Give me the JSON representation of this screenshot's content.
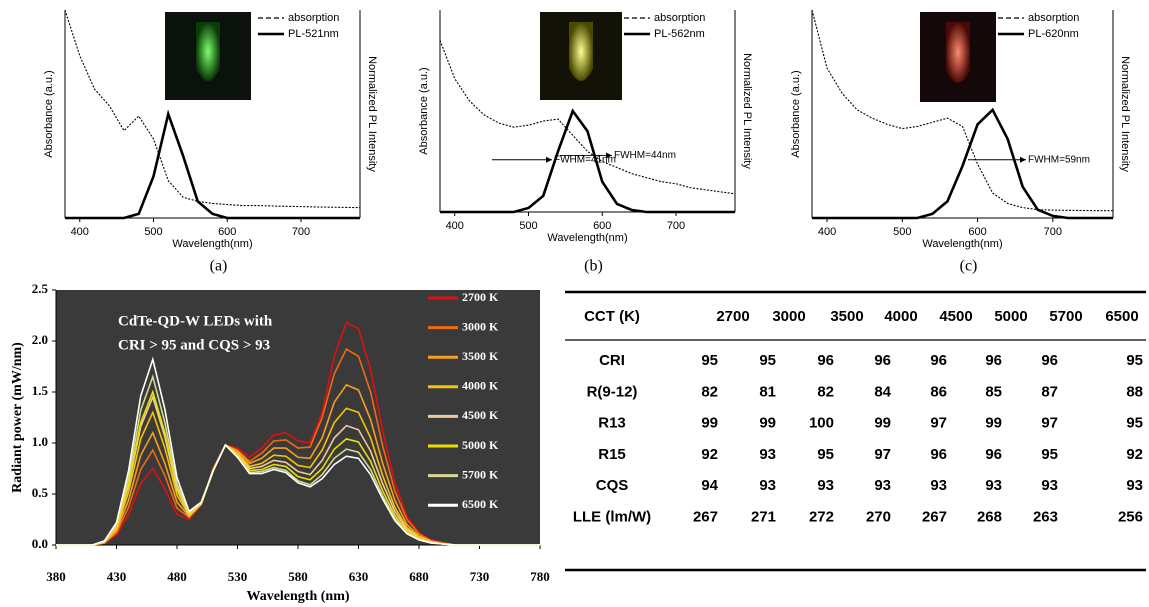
{
  "chart_data": [
    {
      "type": "line",
      "label": "(a)",
      "xlabel": "Wavelength(nm)",
      "ylabel": "Absorbance (a.u.)",
      "y2label": "Normalized PL Intensity",
      "annotation": "FWHM=41nm",
      "x": [
        380,
        400,
        420,
        440,
        460,
        480,
        500,
        520,
        540,
        560,
        580,
        600,
        620,
        640,
        660,
        680,
        700,
        720,
        740,
        760,
        780
      ],
      "xlim": [
        380,
        780
      ],
      "xticks": [
        400,
        500,
        600,
        700
      ],
      "ylim": [
        0,
        1
      ],
      "y2lim": [
        0,
        1
      ],
      "series": [
        {
          "name": "absorption",
          "color": "#000000",
          "linestyle": "dashed",
          "values": [
            1.0,
            0.78,
            0.62,
            0.54,
            0.42,
            0.49,
            0.38,
            0.18,
            0.1,
            0.08,
            0.07,
            0.065,
            0.06,
            0.06,
            0.058,
            0.056,
            0.055,
            0.053,
            0.052,
            0.051,
            0.05
          ]
        },
        {
          "name": "PL-521nm",
          "color": "#000000",
          "linestyle": "solid",
          "axis": "y2",
          "values": [
            0,
            0,
            0,
            0,
            0,
            0.02,
            0.2,
            0.5,
            0.3,
            0.08,
            0.02,
            0,
            0,
            0,
            0,
            0,
            0,
            0,
            0,
            0,
            0
          ]
        }
      ]
    },
    {
      "type": "line",
      "label": "(b)",
      "xlabel": "Wavelength(nm)",
      "ylabel": "Absorbance (a.u.)",
      "y2label": "Normalized PL Intensity",
      "annotation": "FWHM=44nm",
      "x": [
        380,
        400,
        420,
        440,
        460,
        480,
        500,
        520,
        540,
        560,
        580,
        600,
        620,
        640,
        660,
        680,
        700,
        720,
        740,
        760,
        780
      ],
      "xlim": [
        380,
        780
      ],
      "xticks": [
        400,
        500,
        600,
        700
      ],
      "ylim": [
        0,
        1
      ],
      "y2lim": [
        0,
        1
      ],
      "series": [
        {
          "name": "absorption",
          "color": "#000000",
          "linestyle": "dashed",
          "values": [
            0.85,
            0.66,
            0.55,
            0.48,
            0.44,
            0.42,
            0.43,
            0.45,
            0.46,
            0.38,
            0.3,
            0.25,
            0.22,
            0.19,
            0.17,
            0.15,
            0.14,
            0.12,
            0.11,
            0.1,
            0.09
          ]
        },
        {
          "name": "PL-562nm",
          "color": "#000000",
          "linestyle": "solid",
          "axis": "y2",
          "values": [
            0,
            0,
            0,
            0,
            0,
            0,
            0.02,
            0.08,
            0.3,
            0.5,
            0.4,
            0.15,
            0.04,
            0.01,
            0,
            0,
            0,
            0,
            0,
            0,
            0
          ]
        }
      ]
    },
    {
      "type": "line",
      "label": "(c)",
      "xlabel": "Wavelength(nm)",
      "ylabel": "Absorbance (a.u.)",
      "y2label": "Normalized PL Intensity",
      "annotation": "FWHM=59nm",
      "x": [
        380,
        400,
        420,
        440,
        460,
        480,
        500,
        520,
        540,
        560,
        580,
        600,
        620,
        640,
        660,
        680,
        700,
        720,
        740,
        760,
        780
      ],
      "xlim": [
        380,
        780
      ],
      "xticks": [
        400,
        500,
        600,
        700
      ],
      "ylim": [
        0,
        1
      ],
      "y2lim": [
        0,
        1
      ],
      "series": [
        {
          "name": "absorption",
          "color": "#000000",
          "linestyle": "dashed",
          "values": [
            1.0,
            0.72,
            0.6,
            0.52,
            0.48,
            0.45,
            0.43,
            0.44,
            0.46,
            0.48,
            0.44,
            0.26,
            0.12,
            0.07,
            0.05,
            0.04,
            0.038,
            0.037,
            0.036,
            0.035,
            0.035
          ]
        },
        {
          "name": "PL-620nm",
          "color": "#000000",
          "linestyle": "solid",
          "axis": "y2",
          "values": [
            0,
            0,
            0,
            0,
            0,
            0,
            0,
            0,
            0.02,
            0.08,
            0.25,
            0.45,
            0.52,
            0.38,
            0.15,
            0.04,
            0.01,
            0,
            0,
            0,
            0
          ]
        }
      ]
    },
    {
      "type": "line",
      "annotation": [
        "CdTe-QD-W LEDs with",
        "CRI > 95 and CQS > 93"
      ],
      "xlabel": "Wavelength (nm)",
      "ylabel": "Radiant power (mW/nm)",
      "background": "#3a3a3a",
      "x": [
        380,
        390,
        400,
        410,
        420,
        430,
        440,
        450,
        460,
        470,
        480,
        490,
        500,
        510,
        520,
        530,
        540,
        550,
        560,
        570,
        580,
        590,
        600,
        610,
        620,
        630,
        640,
        650,
        660,
        670,
        680,
        690,
        700,
        710,
        720,
        730,
        740,
        750,
        760,
        770,
        780
      ],
      "xlim": [
        380,
        780
      ],
      "xticks": [
        380,
        430,
        480,
        530,
        580,
        630,
        680,
        730,
        780
      ],
      "ylim": [
        0,
        2.5
      ],
      "yticks": [
        {
          "value": 0,
          "label": "0.0"
        },
        0.5,
        {
          "value": 1,
          "label": "1.0"
        },
        1.5,
        {
          "value": 2,
          "label": "2.0"
        },
        2.5
      ],
      "series": [
        {
          "name": "2700 K",
          "color": "#e01010",
          "values": [
            0,
            0,
            0,
            0,
            0.02,
            0.1,
            0.3,
            0.6,
            0.75,
            0.55,
            0.3,
            0.25,
            0.4,
            0.75,
            0.98,
            0.95,
            0.86,
            0.95,
            1.08,
            1.1,
            1.02,
            1.0,
            1.3,
            1.85,
            2.18,
            2.12,
            1.72,
            1.12,
            0.61,
            0.28,
            0.12,
            0.05,
            0.02,
            0,
            0,
            0,
            0,
            0,
            0,
            0,
            0
          ]
        },
        {
          "name": "3000 K",
          "color": "#f06a10",
          "values": [
            0,
            0,
            0,
            0,
            0.02,
            0.12,
            0.37,
            0.74,
            0.93,
            0.68,
            0.36,
            0.27,
            0.4,
            0.75,
            0.98,
            0.93,
            0.82,
            0.9,
            1.02,
            1.03,
            0.95,
            0.96,
            1.25,
            1.68,
            1.92,
            1.85,
            1.5,
            0.97,
            0.53,
            0.25,
            0.11,
            0.04,
            0.02,
            0,
            0,
            0,
            0,
            0,
            0,
            0,
            0
          ]
        },
        {
          "name": "3500 K",
          "color": "#f5a020",
          "values": [
            0,
            0,
            0,
            0,
            0.02,
            0.14,
            0.44,
            0.88,
            1.1,
            0.8,
            0.42,
            0.28,
            0.4,
            0.74,
            0.98,
            0.92,
            0.8,
            0.85,
            0.95,
            0.95,
            0.86,
            0.85,
            1.05,
            1.4,
            1.57,
            1.52,
            1.23,
            0.8,
            0.44,
            0.2,
            0.09,
            0.04,
            0.01,
            0,
            0,
            0,
            0,
            0,
            0,
            0,
            0
          ]
        },
        {
          "name": "4000 K",
          "color": "#f5c400",
          "values": [
            0,
            0,
            0,
            0,
            0.03,
            0.16,
            0.52,
            1.04,
            1.3,
            0.95,
            0.49,
            0.29,
            0.4,
            0.74,
            0.98,
            0.9,
            0.77,
            0.8,
            0.88,
            0.87,
            0.78,
            0.76,
            0.93,
            1.2,
            1.34,
            1.3,
            1.05,
            0.68,
            0.37,
            0.17,
            0.08,
            0.03,
            0.01,
            0,
            0,
            0,
            0,
            0,
            0,
            0,
            0
          ]
        },
        {
          "name": "4500 K",
          "color": "#f0c8a0",
          "values": [
            0,
            0,
            0,
            0,
            0.03,
            0.18,
            0.58,
            1.16,
            1.45,
            1.06,
            0.54,
            0.3,
            0.4,
            0.73,
            0.98,
            0.89,
            0.75,
            0.77,
            0.83,
            0.81,
            0.72,
            0.69,
            0.83,
            1.05,
            1.17,
            1.13,
            0.92,
            0.6,
            0.33,
            0.15,
            0.07,
            0.03,
            0.01,
            0,
            0,
            0,
            0,
            0,
            0,
            0,
            0
          ]
        },
        {
          "name": "5000 K",
          "color": "#e8e000",
          "values": [
            0,
            0,
            0,
            0,
            0.03,
            0.19,
            0.6,
            1.2,
            1.5,
            1.1,
            0.56,
            0.31,
            0.4,
            0.73,
            0.98,
            0.88,
            0.73,
            0.74,
            0.79,
            0.77,
            0.67,
            0.64,
            0.75,
            0.94,
            1.04,
            1.01,
            0.82,
            0.53,
            0.29,
            0.13,
            0.06,
            0.02,
            0.01,
            0,
            0,
            0,
            0,
            0,
            0,
            0,
            0
          ]
        },
        {
          "name": "5700 K",
          "color": "#d8d890",
          "values": [
            0,
            0,
            0,
            0,
            0.03,
            0.2,
            0.66,
            1.32,
            1.65,
            1.2,
            0.6,
            0.32,
            0.41,
            0.73,
            0.98,
            0.87,
            0.71,
            0.72,
            0.76,
            0.73,
            0.63,
            0.59,
            0.69,
            0.85,
            0.94,
            0.91,
            0.74,
            0.48,
            0.26,
            0.12,
            0.05,
            0.02,
            0.01,
            0,
            0,
            0,
            0,
            0,
            0,
            0,
            0
          ]
        },
        {
          "name": "6500 K",
          "color": "#ffffff",
          "values": [
            0,
            0,
            0,
            0,
            0.04,
            0.22,
            0.73,
            1.46,
            1.82,
            1.33,
            0.66,
            0.33,
            0.42,
            0.73,
            0.98,
            0.86,
            0.7,
            0.7,
            0.74,
            0.71,
            0.61,
            0.57,
            0.65,
            0.79,
            0.87,
            0.85,
            0.69,
            0.45,
            0.24,
            0.11,
            0.05,
            0.02,
            0.01,
            0,
            0,
            0,
            0,
            0,
            0,
            0,
            0
          ]
        }
      ]
    }
  ],
  "table": {
    "header": [
      "CCT (K)",
      "2700",
      "3000",
      "3500",
      "4000",
      "4500",
      "5000",
      "5700",
      "6500"
    ],
    "rows": [
      [
        "CRI",
        95,
        95,
        96,
        96,
        96,
        96,
        96,
        95
      ],
      [
        "R(9-12)",
        82,
        81,
        82,
        84,
        86,
        85,
        87,
        88
      ],
      [
        "R13",
        99,
        99,
        100,
        99,
        97,
        99,
        97,
        95
      ],
      [
        "R15",
        92,
        93,
        95,
        97,
        96,
        96,
        95,
        92
      ],
      [
        "CQS",
        94,
        93,
        93,
        93,
        93,
        93,
        93,
        93
      ],
      [
        "LLE (lm/W)",
        267,
        271,
        272,
        270,
        267,
        268,
        263,
        256
      ]
    ]
  }
}
